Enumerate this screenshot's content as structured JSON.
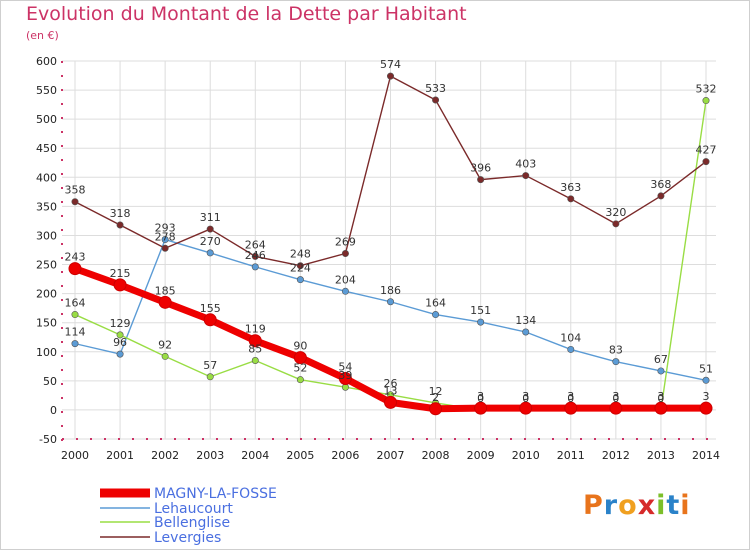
{
  "header": {
    "title": "Evolution du Montant de la Dette par Habitant",
    "subtitle": "(en €)"
  },
  "logo": {
    "text": "Proxiti",
    "letter_colors": [
      "#e8741c",
      "#2a82c9",
      "#f0a020",
      "#d62a2a",
      "#7cbf2a",
      "#2a82c9",
      "#e8741c"
    ]
  },
  "chart_data": {
    "type": "line",
    "x": [
      "2000",
      "2001",
      "2002",
      "2003",
      "2004",
      "2005",
      "2006",
      "2007",
      "2008",
      "2009",
      "2010",
      "2011",
      "2012",
      "2013",
      "2014"
    ],
    "ylim": [
      -50,
      600
    ],
    "yticks": [
      -50,
      0,
      50,
      100,
      150,
      200,
      250,
      300,
      350,
      400,
      450,
      500,
      550,
      600
    ],
    "grid": true,
    "legend_position": "bottom-left",
    "series": [
      {
        "name": "MAGNY-LA-FOSSE",
        "color": "#ee0000",
        "thick": true,
        "values": [
          243,
          215,
          185,
          155,
          119,
          90,
          54,
          13,
          2,
          3,
          3,
          3,
          3,
          3,
          3
        ],
        "labels": [
          "243",
          "215",
          "185",
          "155",
          "119",
          "90",
          "54",
          "13",
          "2",
          "3",
          "3",
          "3",
          "3",
          "3",
          "3"
        ]
      },
      {
        "name": "Lehaucourt",
        "color": "#5b9bd5",
        "thick": false,
        "values": [
          114,
          96,
          293,
          270,
          246,
          224,
          204,
          186,
          164,
          151,
          134,
          104,
          83,
          67,
          51
        ],
        "labels": [
          "114",
          "96",
          "293",
          "270",
          "246",
          "224",
          "204",
          "186",
          "164",
          "151",
          "134",
          "104",
          "83",
          "67",
          "51"
        ]
      },
      {
        "name": "Bellenglise",
        "color": "#99dd44",
        "thick": false,
        "values": [
          164,
          129,
          92,
          57,
          85,
          52,
          39,
          26,
          12,
          0,
          0,
          0,
          0,
          0,
          532
        ],
        "labels": [
          "164",
          "129",
          "92",
          "57",
          "85",
          "52",
          "39",
          "26",
          "12",
          "0",
          "0",
          "0",
          "0",
          "0",
          "532"
        ]
      },
      {
        "name": "Levergies",
        "color": "#7b2a2a",
        "thick": false,
        "values": [
          358,
          318,
          278,
          311,
          264,
          248,
          269,
          574,
          533,
          396,
          403,
          363,
          320,
          368,
          427
        ],
        "labels": [
          "358",
          "318",
          "278",
          "311",
          "264",
          "248",
          "269",
          "574",
          "533",
          "396",
          "403",
          "363",
          "320",
          "368",
          "427"
        ]
      }
    ]
  }
}
